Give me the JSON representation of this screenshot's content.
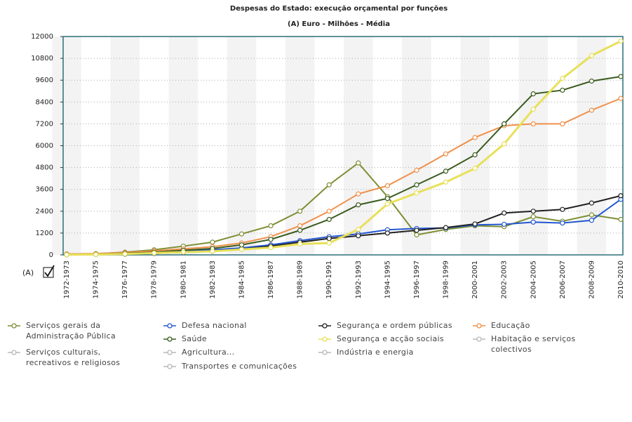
{
  "chart_data": {
    "type": "line",
    "title": "Despesas do Estado: execução orçamental por funções",
    "subtitle": "(A) Euro - Milhões - Média",
    "toggle_label": "(A)",
    "categories": [
      "1972-1973",
      "1974-1975",
      "1976-1977",
      "1978-1979",
      "1980-1981",
      "1982-1983",
      "1984-1985",
      "1986-1987",
      "1988-1989",
      "1990-1991",
      "1992-1993",
      "1994-1995",
      "1996-1997",
      "1998-1999",
      "2000-2001",
      "2002-2003",
      "2004-2005",
      "2006-2007",
      "2008-2009",
      "2010-2010"
    ],
    "series": [
      {
        "name": "Serviços gerais da Administração Pública",
        "color": "#7d8f35",
        "values": [
          50,
          60,
          150,
          280,
          480,
          700,
          1150,
          1600,
          2400,
          3850,
          5050,
          3200,
          1100,
          1400,
          1600,
          1550,
          2100,
          1850,
          2200,
          1950
        ]
      },
      {
        "name": "Defesa nacional",
        "color": "#2457d0",
        "values": [
          20,
          30,
          60,
          120,
          200,
          280,
          380,
          550,
          780,
          1000,
          1150,
          1380,
          1450,
          1480,
          1650,
          1680,
          1800,
          1750,
          1900,
          3050
        ]
      },
      {
        "name": "Segurança e ordem públicas",
        "color": "#222222",
        "values": [
          10,
          20,
          40,
          80,
          140,
          200,
          320,
          480,
          700,
          900,
          1050,
          1200,
          1350,
          1500,
          1700,
          2300,
          2400,
          2500,
          2850,
          3250
        ]
      },
      {
        "name": "Educação",
        "color": "#f0904a",
        "values": [
          50,
          70,
          130,
          220,
          330,
          450,
          650,
          1000,
          1600,
          2400,
          3350,
          3800,
          4650,
          5550,
          6450,
          7100,
          7200,
          7200,
          7950,
          8600
        ]
      },
      {
        "name": "Saúde",
        "color": "#3b5c1f",
        "values": [
          20,
          40,
          80,
          150,
          250,
          350,
          550,
          850,
          1350,
          1950,
          2750,
          3100,
          3850,
          4600,
          5500,
          7200,
          8850,
          9050,
          9550,
          9800
        ]
      },
      {
        "name": "Segurança e acção sociais",
        "color": "#e8e05a",
        "values": [
          10,
          20,
          50,
          100,
          150,
          200,
          300,
          400,
          600,
          650,
          1400,
          2800,
          3400,
          4000,
          4750,
          6100,
          8000,
          9700,
          10950,
          11750
        ]
      }
    ],
    "inactive_series": [
      "Habitação e serviços colectivos",
      "Serviços culturais, recreativos e religiosos",
      "Agricultura...",
      "Indústria e energia",
      "Transportes e comunicações"
    ],
    "inactive_color": "#b8b8b8",
    "ylim": [
      0,
      12000
    ],
    "yticks": [
      0,
      1200,
      2400,
      3600,
      4800,
      6000,
      7200,
      8400,
      9600,
      10800,
      12000
    ],
    "grid": true
  }
}
